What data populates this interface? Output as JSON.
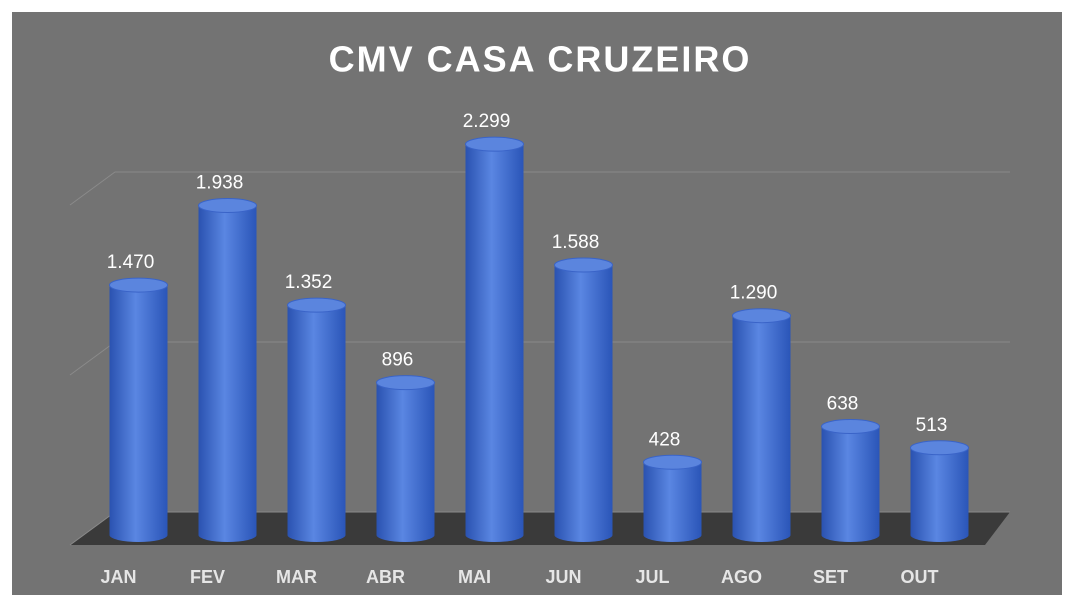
{
  "chart_data": {
    "type": "bar",
    "title": "CMV CASA CRUZEIRO",
    "categories": [
      "JAN",
      "FEV",
      "MAR",
      "ABR",
      "MAI",
      "JUN",
      "JUL",
      "AGO",
      "SET",
      "OUT"
    ],
    "values": [
      1470,
      1938,
      1352,
      896,
      2299,
      1588,
      428,
      1290,
      638,
      513
    ],
    "value_labels": [
      "1.470",
      "1.938",
      "1.352",
      "896",
      "2.299",
      "1.588",
      "428",
      "1.290",
      "638",
      "513"
    ],
    "color": "#3d6ad6",
    "ylim": [
      0,
      2500
    ],
    "yticks": [
      0,
      1000,
      2000
    ],
    "grid": true
  }
}
